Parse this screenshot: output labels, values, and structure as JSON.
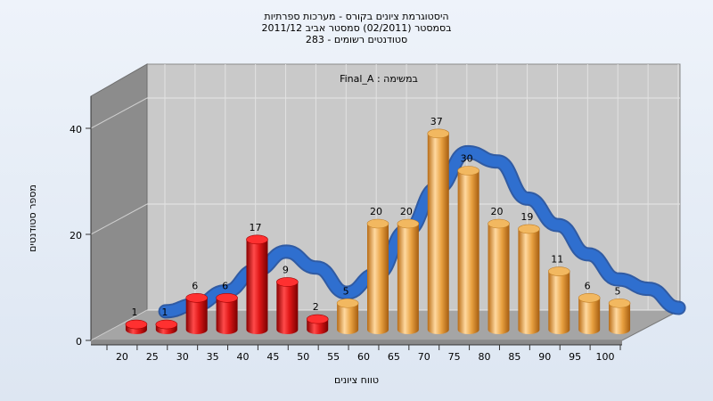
{
  "chart_data": {
    "type": "bar",
    "title_lines": [
      "היסטוגרמת ציונים בקורס - מערכות ספרתיות",
      "בסמסטר (02/2011) סמסטר אביב 2011/12",
      "283 - סטודנטים רשומים"
    ],
    "annotation": "Final_A : במשימה",
    "xlabel": "טווח ציונים",
    "ylabel": "מספר סטודנטים",
    "categories": [
      "20",
      "25",
      "30",
      "35",
      "40",
      "45",
      "50",
      "55",
      "60",
      "65",
      "70",
      "75",
      "80",
      "85",
      "90",
      "95",
      "100"
    ],
    "values": [
      1,
      1,
      6,
      6,
      17,
      9,
      2,
      5,
      20,
      20,
      37,
      30,
      20,
      19,
      11,
      6,
      5
    ],
    "y_ticks": [
      0,
      20,
      40
    ],
    "ylim": [
      0,
      40
    ],
    "grid": true,
    "bar_colors": {
      "below_pass": "#e01818",
      "pass": "#e8a040"
    },
    "pass_from_category": "55",
    "overlay_curve": {
      "type": "ribbon",
      "color": "#2f6fcf"
    }
  }
}
